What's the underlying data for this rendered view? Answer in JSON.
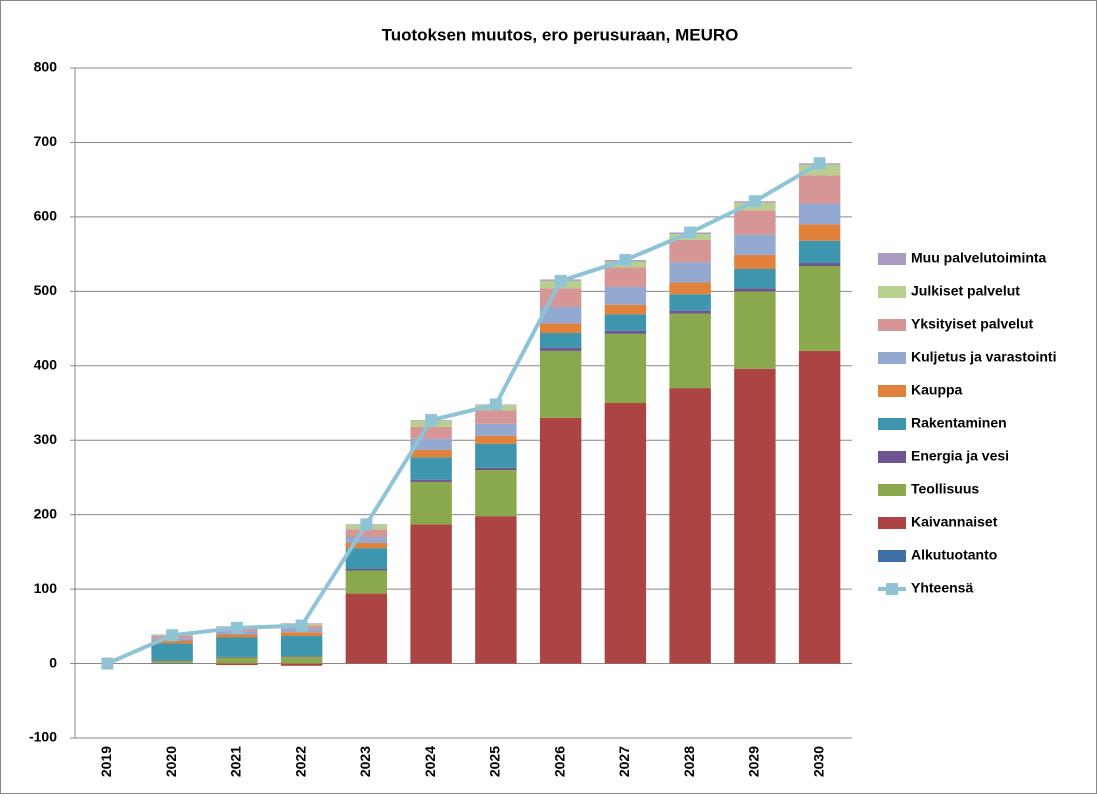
{
  "chart_data": {
    "type": "bar",
    "stacked": true,
    "title": "Tuotoksen muutos, ero perusuraan, MEURO",
    "categories": [
      "2019",
      "2020",
      "2021",
      "2022",
      "2023",
      "2024",
      "2025",
      "2026",
      "2027",
      "2028",
      "2029",
      "2030"
    ],
    "ylim": [
      -100,
      800
    ],
    "yticks": [
      -100,
      0,
      100,
      200,
      300,
      400,
      500,
      600,
      700,
      800
    ],
    "grid": true,
    "legend": "right",
    "series": [
      {
        "name": "Alkutuotanto",
        "color": "#3f6fa6",
        "values": [
          0,
          1,
          0,
          0,
          0,
          0,
          0,
          0,
          0,
          0,
          0,
          0
        ]
      },
      {
        "name": "Kaivannaiset",
        "color": "#ab4442",
        "values": [
          0,
          0,
          -2,
          -3,
          94,
          187,
          198,
          330,
          350,
          370,
          396,
          420
        ]
      },
      {
        "name": "Teollisuus",
        "color": "#8aa84c",
        "values": [
          0,
          3,
          8,
          9,
          31,
          57,
          62,
          90,
          93,
          100,
          104,
          114
        ]
      },
      {
        "name": "Energia ja vesi",
        "color": "#6c5591",
        "values": [
          0,
          1,
          1,
          1,
          2,
          3,
          3,
          4,
          4,
          4,
          4,
          4
        ]
      },
      {
        "name": "Rakentaminen",
        "color": "#3d96ae",
        "values": [
          0,
          22,
          26,
          27,
          28,
          30,
          32,
          20,
          22,
          22,
          26,
          30
        ]
      },
      {
        "name": "Kauppa",
        "color": "#e0823c",
        "values": [
          0,
          4,
          4,
          5,
          7,
          10,
          11,
          13,
          13,
          16,
          19,
          22
        ]
      },
      {
        "name": "Kuljetus ja varastointi",
        "color": "#93a9d2",
        "values": [
          0,
          3,
          4,
          5,
          8,
          15,
          16,
          22,
          24,
          27,
          27,
          28
        ]
      },
      {
        "name": "Yksityiset palvelut",
        "color": "#d79696",
        "values": [
          0,
          3,
          4,
          4,
          10,
          16,
          18,
          25,
          26,
          30,
          33,
          38
        ]
      },
      {
        "name": "Julkiset palvelut",
        "color": "#b8d08f",
        "values": [
          0,
          1,
          2,
          2,
          6,
          8,
          7,
          10,
          8,
          8,
          10,
          14
        ]
      },
      {
        "name": "Muu palvelutoiminta",
        "color": "#a99bc3",
        "values": [
          0,
          1,
          1,
          1,
          1,
          1,
          1,
          2,
          2,
          2,
          2,
          2
        ]
      }
    ],
    "line_series": {
      "name": "Yhteensä",
      "color": "#8fc3d6",
      "values": [
        0,
        38,
        48,
        51,
        187,
        327,
        348,
        514,
        542,
        579,
        621,
        672
      ]
    }
  }
}
